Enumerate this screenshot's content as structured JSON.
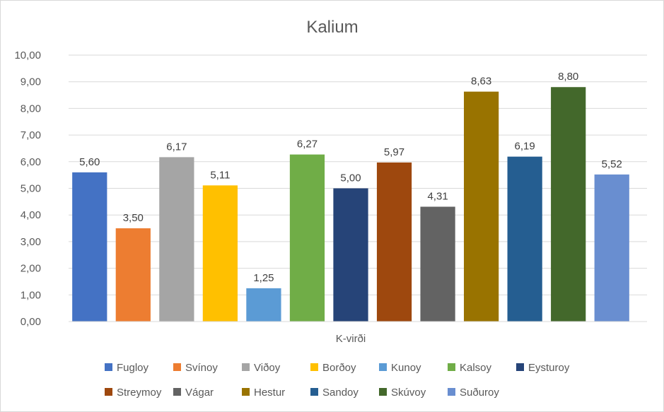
{
  "chart_data": {
    "type": "bar",
    "title": "Kalium",
    "xlabel": "",
    "ylabel": "",
    "categories": [
      "K-virði"
    ],
    "ylim": [
      0,
      10
    ],
    "ytick_step": 1,
    "ytick_labels": [
      "0,00",
      "1,00",
      "2,00",
      "3,00",
      "4,00",
      "5,00",
      "6,00",
      "7,00",
      "8,00",
      "9,00",
      "10,00"
    ],
    "grid": true,
    "legend_position": "bottom",
    "series": [
      {
        "name": "Fugloy",
        "values": [
          5.6
        ],
        "label": "5,60",
        "color": "#4472C4"
      },
      {
        "name": "Svínoy",
        "values": [
          3.5
        ],
        "label": "3,50",
        "color": "#ED7D31"
      },
      {
        "name": "Viðoy",
        "values": [
          6.17
        ],
        "label": "6,17",
        "color": "#A5A5A5"
      },
      {
        "name": "Borðoy",
        "values": [
          5.11
        ],
        "label": "5,11",
        "color": "#FFC000"
      },
      {
        "name": "Kunoy",
        "values": [
          1.25
        ],
        "label": "1,25",
        "color": "#5B9BD5"
      },
      {
        "name": "Kalsoy",
        "values": [
          6.27
        ],
        "label": "6,27",
        "color": "#70AD47"
      },
      {
        "name": "Eysturoy",
        "values": [
          5.0
        ],
        "label": "5,00",
        "color": "#264478"
      },
      {
        "name": "Streymoy",
        "values": [
          5.97
        ],
        "label": "5,97",
        "color": "#9E480E"
      },
      {
        "name": "Vágar",
        "values": [
          4.31
        ],
        "label": "4,31",
        "color": "#636363"
      },
      {
        "name": "Hestur",
        "values": [
          8.63
        ],
        "label": "8,63",
        "color": "#997300"
      },
      {
        "name": "Sandoy",
        "values": [
          6.19
        ],
        "label": "6,19",
        "color": "#255E91"
      },
      {
        "name": "Skúvoy",
        "values": [
          8.8
        ],
        "label": "8,80",
        "color": "#43682B"
      },
      {
        "name": "Suðuroy",
        "values": [
          5.52
        ],
        "label": "5,52",
        "color": "#698ED0"
      }
    ]
  }
}
